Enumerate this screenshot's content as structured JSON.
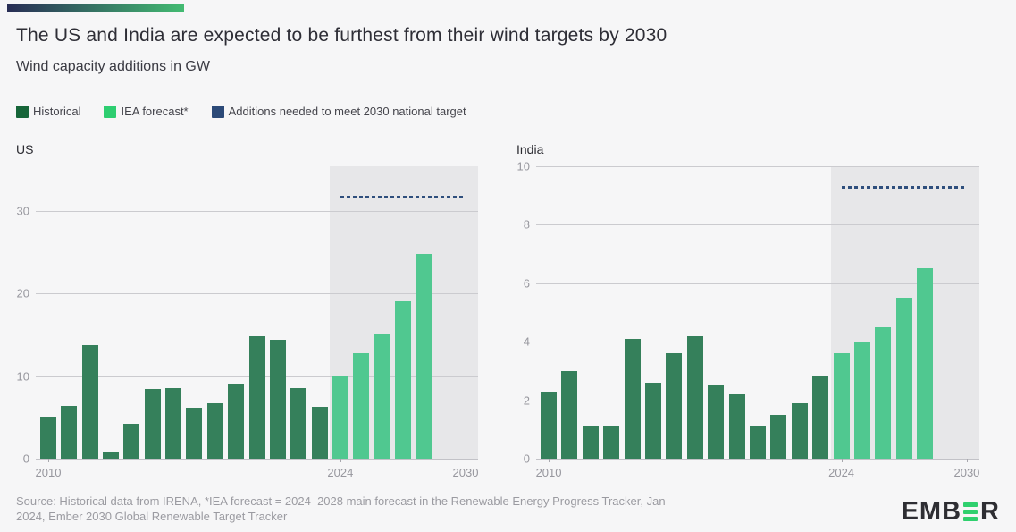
{
  "header": {
    "title": "The US and India are expected to be furthest from their wind targets by 2030",
    "subtitle": "Wind capacity additions in GW"
  },
  "legend": [
    {
      "label": "Historical",
      "color": "#166539"
    },
    {
      "label": "IEA forecast*",
      "color": "#2ECE71"
    },
    {
      "label": "Additions needed to meet 2030 national target",
      "color": "#2C4A78"
    }
  ],
  "colors": {
    "background": "#F6F6F7",
    "forecast_region": "#E7E7E9",
    "gridline": "#CBCBCF",
    "axis_text": "#97979E",
    "bar_historical": "#35805B",
    "bar_forecast": "#50C890",
    "target_line": "#2F4F7D",
    "accent_gradient_from": "#282D55",
    "accent_gradient_to": "#43BB72"
  },
  "chart_data": [
    {
      "type": "bar",
      "title": "US",
      "unit": "GW",
      "series": [
        {
          "name": "Historical",
          "years": [
            2010,
            2011,
            2012,
            2013,
            2014,
            2015,
            2016,
            2017,
            2018,
            2019,
            2020,
            2021,
            2022,
            2023
          ],
          "values": [
            5.1,
            6.4,
            13.7,
            0.8,
            4.2,
            8.4,
            8.6,
            6.2,
            6.7,
            9.1,
            14.8,
            14.4,
            8.6,
            6.3
          ]
        },
        {
          "name": "IEA forecast*",
          "years": [
            2024,
            2025,
            2026,
            2027,
            2028
          ],
          "values": [
            10.0,
            12.8,
            15.2,
            19.1,
            24.8
          ]
        }
      ],
      "target": {
        "label": "Additions needed to meet 2030 national target",
        "value": 31.7,
        "from_year": 2024,
        "to_year": 2030
      },
      "forecast_region_start": 2023.5,
      "xlim": [
        2009.4,
        2030.6
      ],
      "ylim": [
        0,
        35.4
      ],
      "yticks": [
        0,
        10,
        20,
        30
      ],
      "xticks": [
        2010,
        2024,
        2030
      ],
      "legend_position": "top",
      "grid": "horizontal"
    },
    {
      "type": "bar",
      "title": "India",
      "unit": "GW",
      "series": [
        {
          "name": "Historical",
          "years": [
            2010,
            2011,
            2012,
            2013,
            2014,
            2015,
            2016,
            2017,
            2018,
            2019,
            2020,
            2021,
            2022,
            2023
          ],
          "values": [
            2.3,
            3.0,
            1.1,
            1.1,
            4.1,
            2.6,
            3.6,
            4.2,
            2.5,
            2.2,
            1.1,
            1.5,
            1.9,
            2.8
          ]
        },
        {
          "name": "IEA forecast*",
          "years": [
            2024,
            2025,
            2026,
            2027,
            2028
          ],
          "values": [
            3.6,
            4.0,
            4.5,
            5.5,
            6.5
          ]
        }
      ],
      "target": {
        "label": "Additions needed to meet 2030 national target",
        "value": 9.3,
        "from_year": 2024,
        "to_year": 2030
      },
      "forecast_region_start": 2023.5,
      "xlim": [
        2009.4,
        2030.6
      ],
      "ylim": [
        0,
        10
      ],
      "yticks": [
        0,
        2,
        4,
        6,
        8,
        10
      ],
      "xticks": [
        2010,
        2024,
        2030
      ],
      "legend_position": "top",
      "grid": "horizontal"
    }
  ],
  "footer": {
    "source_line1": "Source: Historical data from IRENA, *IEA forecast = 2024–2028 main forecast in the Renewable Energy Progress Tracker, Jan",
    "source_line2": "2024, Ember 2030 Global Renewable Target Tracker",
    "logo": {
      "part1": "EMB",
      "part2": "R"
    }
  }
}
